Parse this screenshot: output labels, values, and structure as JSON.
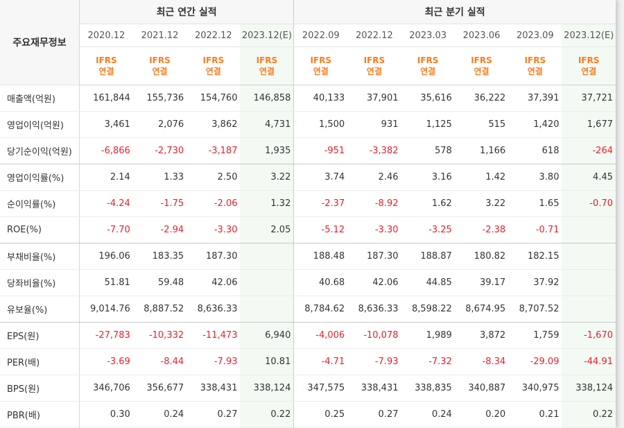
{
  "header": {
    "row_label": "주요재무정보",
    "annual_title": "최근 연간 실적",
    "quarter_title": "최근 분기 실적"
  },
  "periods": [
    {
      "date": "2020.12",
      "basis_line1": "IFRS",
      "basis_line2": "연결",
      "estimate": false
    },
    {
      "date": "2021.12",
      "basis_line1": "IFRS",
      "basis_line2": "연결",
      "estimate": false
    },
    {
      "date": "2022.12",
      "basis_line1": "IFRS",
      "basis_line2": "연결",
      "estimate": false
    },
    {
      "date": "2023.12(E)",
      "basis_line1": "IFRS",
      "basis_line2": "연결",
      "estimate": true
    },
    {
      "date": "2022.09",
      "basis_line1": "IFRS",
      "basis_line2": "연결",
      "estimate": false
    },
    {
      "date": "2022.12",
      "basis_line1": "IFRS",
      "basis_line2": "연결",
      "estimate": false
    },
    {
      "date": "2023.03",
      "basis_line1": "IFRS",
      "basis_line2": "연결",
      "estimate": false
    },
    {
      "date": "2023.06",
      "basis_line1": "IFRS",
      "basis_line2": "연결",
      "estimate": false
    },
    {
      "date": "2023.09",
      "basis_line1": "IFRS",
      "basis_line2": "연결",
      "estimate": false
    },
    {
      "date": "2023.12(E)",
      "basis_line1": "IFRS",
      "basis_line2": "연결",
      "estimate": true
    }
  ],
  "rows": [
    {
      "label": "매출액(억원)",
      "values": [
        "161,844",
        "155,736",
        "154,760",
        "146,858",
        "40,133",
        "37,901",
        "35,616",
        "36,222",
        "37,391",
        "37,721"
      ]
    },
    {
      "label": "영업이익(억원)",
      "values": [
        "3,461",
        "2,076",
        "3,862",
        "4,731",
        "1,500",
        "931",
        "1,125",
        "515",
        "1,420",
        "1,677"
      ]
    },
    {
      "label": "당기순이익(억원)",
      "values": [
        "-6,866",
        "-2,730",
        "-3,187",
        "1,935",
        "-951",
        "-3,382",
        "578",
        "1,166",
        "618",
        "-264"
      ]
    },
    {
      "label": "영업이익률(%)",
      "values": [
        "2.14",
        "1.33",
        "2.50",
        "3.22",
        "3.74",
        "2.46",
        "3.16",
        "1.42",
        "3.80",
        "4.45"
      ]
    },
    {
      "label": "순이익률(%)",
      "values": [
        "-4.24",
        "-1.75",
        "-2.06",
        "1.32",
        "-2.37",
        "-8.92",
        "1.62",
        "3.22",
        "1.65",
        "-0.70"
      ]
    },
    {
      "label": "ROE(%)",
      "values": [
        "-7.70",
        "-2.94",
        "-3.30",
        "2.05",
        "-5.12",
        "-3.30",
        "-3.25",
        "-2.38",
        "-0.71",
        ""
      ]
    },
    {
      "label": "부채비율(%)",
      "values": [
        "196.06",
        "183.35",
        "187.30",
        "",
        "188.48",
        "187.30",
        "188.87",
        "180.82",
        "182.15",
        ""
      ]
    },
    {
      "label": "당좌비율(%)",
      "values": [
        "51.81",
        "59.48",
        "42.06",
        "",
        "40.68",
        "42.06",
        "44.85",
        "39.17",
        "37.92",
        ""
      ]
    },
    {
      "label": "유보율(%)",
      "values": [
        "9,014.76",
        "8,887.52",
        "8,636.33",
        "",
        "8,784.62",
        "8,636.33",
        "8,598.22",
        "8,674.95",
        "8,707.52",
        ""
      ]
    },
    {
      "label": "EPS(원)",
      "values": [
        "-27,783",
        "-10,332",
        "-11,473",
        "6,940",
        "-4,006",
        "-10,078",
        "1,989",
        "3,872",
        "1,759",
        "-1,670"
      ]
    },
    {
      "label": "PER(배)",
      "values": [
        "-3.69",
        "-8.44",
        "-7.93",
        "10.81",
        "-4.71",
        "-7.93",
        "-7.32",
        "-8.34",
        "-29.09",
        "-44.91"
      ]
    },
    {
      "label": "BPS(원)",
      "values": [
        "346,706",
        "356,677",
        "338,431",
        "338,124",
        "347,575",
        "338,431",
        "338,835",
        "340,887",
        "340,975",
        "338,124"
      ]
    },
    {
      "label": "PBR(배)",
      "values": [
        "0.30",
        "0.24",
        "0.27",
        "0.22",
        "0.25",
        "0.27",
        "0.24",
        "0.20",
        "0.21",
        "0.22"
      ]
    }
  ],
  "colors": {
    "negative": "#e8202a",
    "ifrs": "#ff7a1a",
    "estimate_bg": "#f3f9f3"
  }
}
